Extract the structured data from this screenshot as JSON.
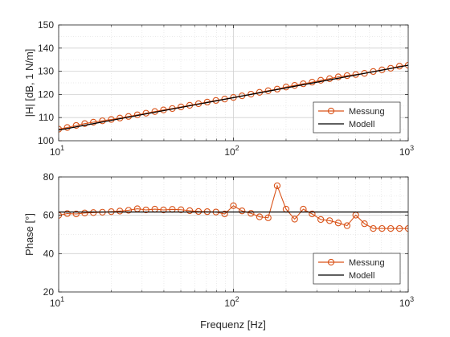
{
  "figure": {
    "xlabel": "Frequenz [Hz]"
  },
  "chart_data": [
    {
      "type": "line",
      "xscale": "log",
      "xlim": [
        10,
        1000
      ],
      "ylim": [
        100,
        150
      ],
      "yticks": [
        100,
        110,
        120,
        130,
        140,
        150
      ],
      "xticks": [
        {
          "value": 10,
          "base": "10",
          "exp": "1"
        },
        {
          "value": 100,
          "base": "10",
          "exp": "2"
        },
        {
          "value": 1000,
          "base": "10",
          "exp": "3"
        }
      ],
      "ylabel": "|H| [dB, 1 N/m]",
      "xlabel": "",
      "grid": true,
      "minor_grid": true,
      "legend_position": "bottom-right",
      "series": [
        {
          "name": "Messung",
          "color": "#d95319",
          "marker": "circle",
          "x": [
            10,
            11.2,
            12.6,
            14.1,
            15.8,
            17.8,
            20,
            22.4,
            25.1,
            28.2,
            31.6,
            35.5,
            39.8,
            44.7,
            50.1,
            56.2,
            63.1,
            70.8,
            79.4,
            89.1,
            100,
            112,
            126,
            141,
            158,
            178,
            200,
            224,
            251,
            282,
            316,
            355,
            398,
            447,
            501,
            562,
            631,
            708,
            794,
            891,
            1000
          ],
          "y": [
            105.0,
            105.7,
            106.6,
            107.4,
            108.0,
            108.6,
            109.2,
            109.8,
            110.5,
            111.2,
            111.9,
            112.6,
            113.3,
            113.9,
            114.6,
            115.3,
            116.0,
            116.7,
            117.4,
            118.0,
            118.7,
            119.4,
            120.1,
            120.9,
            121.6,
            122.3,
            123.2,
            123.9,
            124.6,
            125.3,
            126.1,
            126.8,
            127.6,
            128.1,
            128.6,
            129.1,
            129.9,
            130.6,
            131.3,
            132.2,
            132.6
          ]
        },
        {
          "name": "Modell",
          "color": "#000000",
          "marker": "none",
          "x": [
            10,
            1000
          ],
          "y": [
            104.6,
            132.6
          ]
        }
      ]
    },
    {
      "type": "line",
      "xscale": "log",
      "xlim": [
        10,
        1000
      ],
      "ylim": [
        20,
        80
      ],
      "yticks": [
        20,
        40,
        60,
        80
      ],
      "xticks": [
        {
          "value": 10,
          "base": "10",
          "exp": "1"
        },
        {
          "value": 100,
          "base": "10",
          "exp": "2"
        },
        {
          "value": 1000,
          "base": "10",
          "exp": "3"
        }
      ],
      "ylabel": "Phase [°]",
      "xlabel": "Frequenz [Hz]",
      "grid": true,
      "minor_grid": true,
      "legend_position": "bottom-right",
      "series": [
        {
          "name": "Messung",
          "color": "#d95319",
          "marker": "circle",
          "x": [
            10,
            11.2,
            12.6,
            14.1,
            15.8,
            17.8,
            20,
            22.4,
            25.1,
            28.2,
            31.6,
            35.5,
            39.8,
            44.7,
            50.1,
            56.2,
            63.1,
            70.8,
            79.4,
            89.1,
            100,
            112,
            126,
            141,
            158,
            178,
            200,
            224,
            251,
            282,
            316,
            355,
            398,
            447,
            501,
            562,
            631,
            708,
            794,
            891,
            1000
          ],
          "y": [
            60.0,
            60.9,
            60.7,
            61.2,
            61.4,
            61.6,
            61.9,
            62.2,
            62.6,
            63.4,
            62.8,
            63.2,
            62.8,
            63.1,
            62.9,
            62.4,
            62.0,
            61.9,
            61.7,
            60.7,
            65.0,
            62.3,
            61.0,
            59.2,
            58.7,
            75.4,
            63.2,
            58.0,
            63.2,
            60.7,
            57.8,
            57.2,
            56.0,
            54.6,
            60.1,
            55.6,
            53.1,
            53.1,
            53.1,
            53.1,
            53.1
          ]
        },
        {
          "name": "Modell",
          "color": "#000000",
          "marker": "none",
          "x": [
            10,
            1000
          ],
          "y": [
            61.7,
            61.7
          ]
        }
      ]
    }
  ]
}
